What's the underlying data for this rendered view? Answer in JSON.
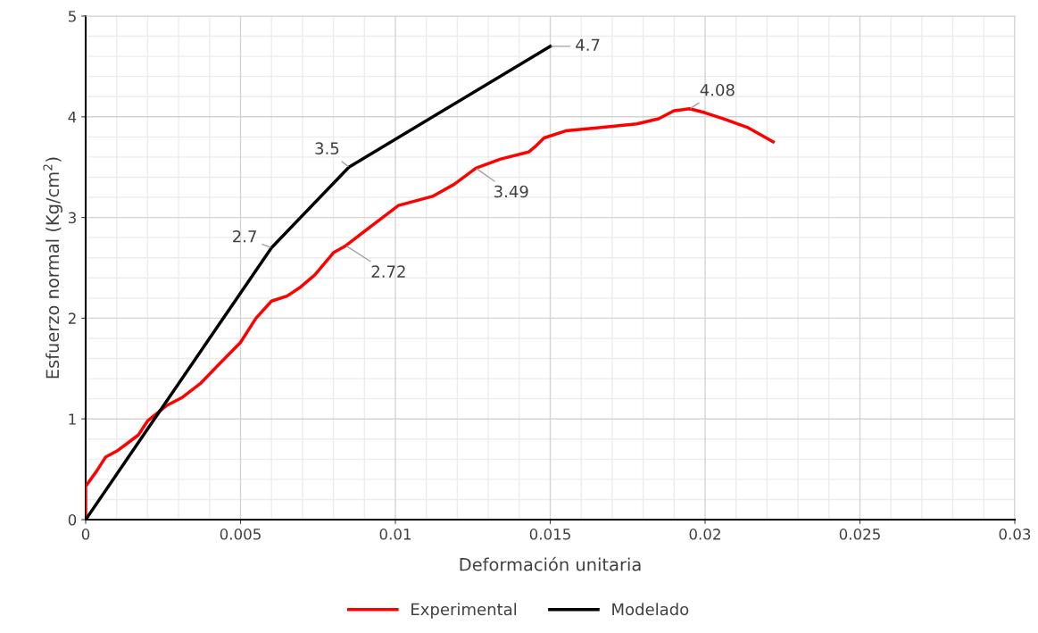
{
  "chart_data": {
    "type": "line",
    "xlabel": "Deformación unitaria",
    "ylabel": "Esfuerzo normal (Kg/cm$^{2}$)",
    "xlim": [
      0,
      0.03
    ],
    "xticks": [
      0,
      0.005,
      0.01,
      0.015,
      0.02,
      0.025,
      0.03
    ],
    "ylim": [
      0,
      5
    ],
    "yticks": [
      0,
      1,
      2,
      3,
      4,
      5
    ],
    "grid": true,
    "legend": "bottom",
    "marker": "none",
    "line_style": "solid",
    "series": [
      {
        "name": "Experimental",
        "color": "#ff0000",
        "x": [
          0,
          0,
          2e-05,
          0.00035,
          0.00064,
          0.001,
          0.00127,
          0.0017,
          0.002,
          0.0026,
          0.0031,
          0.0037,
          0.0042,
          0.005,
          0.0055,
          0.006,
          0.0065,
          0.0069,
          0.0074,
          0.008,
          0.0084,
          0.0092,
          0.0101,
          0.0112,
          0.0119,
          0.0126,
          0.0134,
          0.0143,
          0.0145,
          0.0148,
          0.0155,
          0.0165,
          0.0178,
          0.0185,
          0.019,
          0.0195,
          0.02,
          0.0206,
          0.0214,
          0.0222
        ],
        "values": [
          0,
          0.33,
          0.34,
          0.48,
          0.62,
          0.68,
          0.74,
          0.84,
          0.98,
          1.13,
          1.21,
          1.35,
          1.51,
          1.76,
          2.0,
          2.17,
          2.22,
          2.3,
          2.43,
          2.65,
          2.72,
          2.91,
          3.12,
          3.21,
          3.33,
          3.49,
          3.58,
          3.65,
          3.7,
          3.79,
          3.86,
          3.89,
          3.93,
          3.98,
          4.06,
          4.08,
          4.04,
          3.98,
          3.89,
          3.75
        ]
      },
      {
        "name": "Modelado",
        "color": "#000000",
        "x": [
          0,
          0.006,
          0.0085,
          0.015
        ],
        "values": [
          0,
          2.7,
          3.5,
          4.7
        ]
      }
    ],
    "annotations": [
      {
        "text": "2.7",
        "x": 0.006,
        "y": 2.7
      },
      {
        "text": "3.5",
        "x": 0.0085,
        "y": 3.5
      },
      {
        "text": "4.7",
        "x": 0.015,
        "y": 4.7
      },
      {
        "text": "2.72",
        "x": 0.0084,
        "y": 2.72
      },
      {
        "text": "3.49",
        "x": 0.0126,
        "y": 3.49
      },
      {
        "text": "4.08",
        "x": 0.0195,
        "y": 4.08
      }
    ]
  }
}
